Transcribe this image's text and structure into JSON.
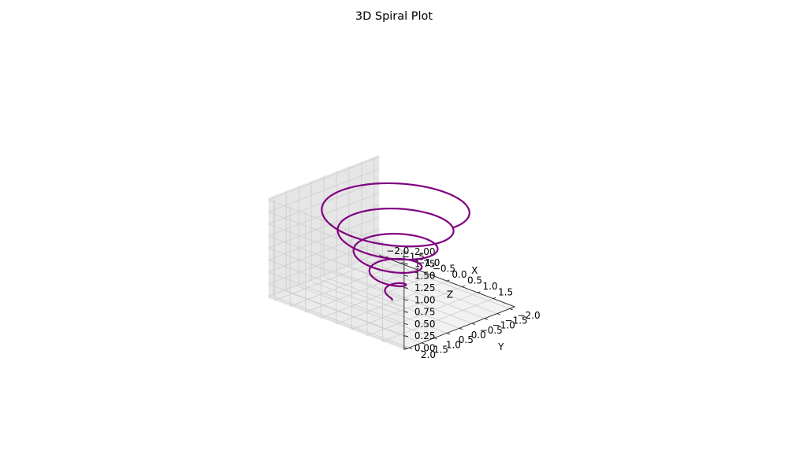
{
  "chart_data": {
    "type": "line3d",
    "title": "3D Spiral Plot",
    "xlabel": "X",
    "ylabel": "Y",
    "zlabel": "Z",
    "xlim": [
      -2.0,
      2.0
    ],
    "ylim": [
      -2.0,
      2.0
    ],
    "zlim": [
      0.0,
      2.0
    ],
    "x_ticks": [
      "−2.0",
      "−1.5",
      "−1.0",
      "−0.5",
      "0.0",
      "0.5",
      "1.0",
      "1.5"
    ],
    "y_ticks": [
      "−2.0",
      "−1.5",
      "−1.0",
      "−0.5",
      "0.0",
      "0.5",
      "1.0",
      "1.5",
      "2.0"
    ],
    "z_ticks": [
      "0.00",
      "0.25",
      "0.50",
      "0.75",
      "1.00",
      "1.25",
      "1.50",
      "1.75",
      "2.00"
    ],
    "grid": true,
    "series": [
      {
        "color": "#800080",
        "equation": {
          "x": "r·cos(θ)",
          "y": "r·sin(θ)",
          "z": "r",
          "theta_range": [
            0,
            31.4159
          ],
          "r_range": [
            0,
            2
          ]
        }
      }
    ]
  }
}
